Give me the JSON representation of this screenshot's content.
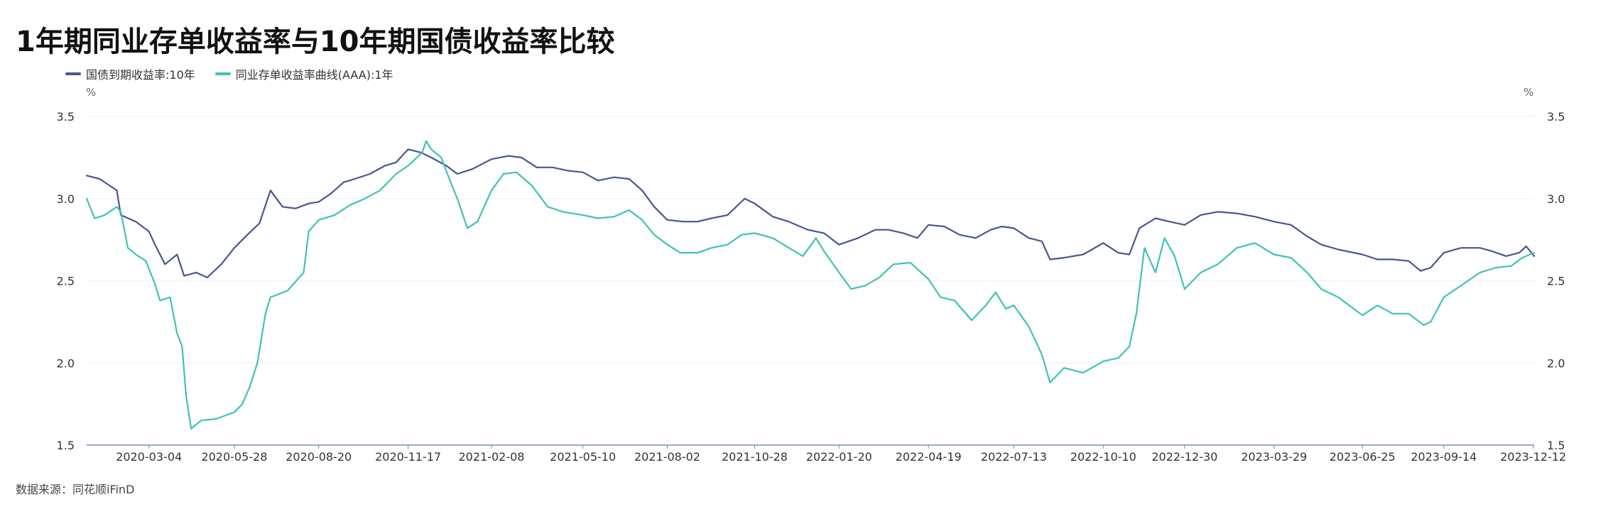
{
  "title": "1年期同业存单收益率与10年期国债收益率比较",
  "source": "数据来源：同花顺iFinD",
  "colors": {
    "navy": "#4a5592",
    "teal": "#3fc2b6",
    "grid": "#eeeeee",
    "axis": "#7a8abf"
  },
  "chart_data": {
    "type": "line",
    "title": "1年期同业存单收益率与10年期国债收益率比较",
    "y_unit_left": "%",
    "y_unit_right": "%",
    "ylim": [
      1.5,
      3.5
    ],
    "y_ticks": [
      "1.5",
      "2.0",
      "2.5",
      "3.0",
      "3.5"
    ],
    "y_tick_values": [
      1.5,
      2.0,
      2.5,
      3.0,
      3.5
    ],
    "grid": true,
    "legend_position": "top-left",
    "x_range": [
      "2020-01-02",
      "2023-12-13"
    ],
    "x_ticks": [
      "2020-03-04",
      "2020-05-28",
      "2020-08-20",
      "2020-11-17",
      "2021-02-08",
      "2021-05-10",
      "2021-08-02",
      "2021-10-28",
      "2022-01-20",
      "2022-04-19",
      "2022-07-13",
      "2022-10-10",
      "2022-12-30",
      "2023-03-29",
      "2023-06-25",
      "2023-09-14",
      "2023-12-12"
    ],
    "series": [
      {
        "name": "国债到期收益率:10年",
        "color": "#4a5592",
        "points": [
          [
            "2020-01-02",
            3.14
          ],
          [
            "2020-01-15",
            3.12
          ],
          [
            "2020-02-01",
            3.05
          ],
          [
            "2020-02-05",
            2.9
          ],
          [
            "2020-02-20",
            2.86
          ],
          [
            "2020-03-04",
            2.8
          ],
          [
            "2020-03-10",
            2.72
          ],
          [
            "2020-03-20",
            2.6
          ],
          [
            "2020-04-01",
            2.66
          ],
          [
            "2020-04-08",
            2.53
          ],
          [
            "2020-04-20",
            2.55
          ],
          [
            "2020-05-01",
            2.52
          ],
          [
            "2020-05-15",
            2.6
          ],
          [
            "2020-05-28",
            2.7
          ],
          [
            "2020-06-10",
            2.78
          ],
          [
            "2020-06-22",
            2.85
          ],
          [
            "2020-07-03",
            3.05
          ],
          [
            "2020-07-15",
            2.95
          ],
          [
            "2020-07-28",
            2.94
          ],
          [
            "2020-08-10",
            2.97
          ],
          [
            "2020-08-20",
            2.98
          ],
          [
            "2020-09-01",
            3.03
          ],
          [
            "2020-09-14",
            3.1
          ],
          [
            "2020-09-25",
            3.12
          ],
          [
            "2020-10-10",
            3.15
          ],
          [
            "2020-10-25",
            3.2
          ],
          [
            "2020-11-05",
            3.22
          ],
          [
            "2020-11-17",
            3.3
          ],
          [
            "2020-11-30",
            3.28
          ],
          [
            "2020-12-10",
            3.25
          ],
          [
            "2020-12-25",
            3.2
          ],
          [
            "2021-01-05",
            3.15
          ],
          [
            "2021-01-20",
            3.18
          ],
          [
            "2021-02-08",
            3.24
          ],
          [
            "2021-02-25",
            3.26
          ],
          [
            "2021-03-10",
            3.25
          ],
          [
            "2021-03-25",
            3.19
          ],
          [
            "2021-04-10",
            3.19
          ],
          [
            "2021-04-25",
            3.17
          ],
          [
            "2021-05-10",
            3.16
          ],
          [
            "2021-05-25",
            3.11
          ],
          [
            "2021-06-10",
            3.13
          ],
          [
            "2021-06-25",
            3.12
          ],
          [
            "2021-07-08",
            3.05
          ],
          [
            "2021-07-20",
            2.95
          ],
          [
            "2021-08-02",
            2.87
          ],
          [
            "2021-08-18",
            2.86
          ],
          [
            "2021-09-01",
            2.86
          ],
          [
            "2021-09-15",
            2.88
          ],
          [
            "2021-10-01",
            2.9
          ],
          [
            "2021-10-18",
            3.0
          ],
          [
            "2021-10-28",
            2.97
          ],
          [
            "2021-11-15",
            2.89
          ],
          [
            "2021-12-01",
            2.86
          ],
          [
            "2021-12-20",
            2.81
          ],
          [
            "2022-01-05",
            2.79
          ],
          [
            "2022-01-20",
            2.72
          ],
          [
            "2022-02-08",
            2.76
          ],
          [
            "2022-02-25",
            2.81
          ],
          [
            "2022-03-10",
            2.81
          ],
          [
            "2022-03-25",
            2.79
          ],
          [
            "2022-04-08",
            2.76
          ],
          [
            "2022-04-19",
            2.84
          ],
          [
            "2022-05-05",
            2.83
          ],
          [
            "2022-05-20",
            2.78
          ],
          [
            "2022-06-05",
            2.76
          ],
          [
            "2022-06-20",
            2.81
          ],
          [
            "2022-07-01",
            2.83
          ],
          [
            "2022-07-13",
            2.82
          ],
          [
            "2022-07-28",
            2.76
          ],
          [
            "2022-08-10",
            2.74
          ],
          [
            "2022-08-18",
            2.63
          ],
          [
            "2022-09-01",
            2.64
          ],
          [
            "2022-09-20",
            2.66
          ],
          [
            "2022-10-10",
            2.73
          ],
          [
            "2022-10-25",
            2.67
          ],
          [
            "2022-11-05",
            2.66
          ],
          [
            "2022-11-15",
            2.82
          ],
          [
            "2022-12-01",
            2.88
          ],
          [
            "2022-12-15",
            2.86
          ],
          [
            "2022-12-30",
            2.84
          ],
          [
            "2023-01-15",
            2.9
          ],
          [
            "2023-02-01",
            2.92
          ],
          [
            "2023-02-20",
            2.91
          ],
          [
            "2023-03-10",
            2.89
          ],
          [
            "2023-03-29",
            2.86
          ],
          [
            "2023-04-15",
            2.84
          ],
          [
            "2023-05-01",
            2.77
          ],
          [
            "2023-05-15",
            2.72
          ],
          [
            "2023-06-01",
            2.69
          ],
          [
            "2023-06-25",
            2.66
          ],
          [
            "2023-07-10",
            2.63
          ],
          [
            "2023-07-25",
            2.63
          ],
          [
            "2023-08-10",
            2.62
          ],
          [
            "2023-08-22",
            2.56
          ],
          [
            "2023-09-01",
            2.58
          ],
          [
            "2023-09-14",
            2.67
          ],
          [
            "2023-10-01",
            2.7
          ],
          [
            "2023-10-20",
            2.7
          ],
          [
            "2023-11-01",
            2.68
          ],
          [
            "2023-11-15",
            2.65
          ],
          [
            "2023-11-28",
            2.67
          ],
          [
            "2023-12-05",
            2.71
          ],
          [
            "2023-12-13",
            2.65
          ]
        ]
      },
      {
        "name": "同业存单收益率曲线(AAA):1年",
        "color": "#3fc2b6",
        "points": [
          [
            "2020-01-02",
            3.0
          ],
          [
            "2020-01-10",
            2.88
          ],
          [
            "2020-01-20",
            2.9
          ],
          [
            "2020-02-01",
            2.95
          ],
          [
            "2020-02-05",
            2.92
          ],
          [
            "2020-02-12",
            2.7
          ],
          [
            "2020-02-20",
            2.66
          ],
          [
            "2020-03-01",
            2.62
          ],
          [
            "2020-03-10",
            2.48
          ],
          [
            "2020-03-15",
            2.38
          ],
          [
            "2020-03-25",
            2.4
          ],
          [
            "2020-04-01",
            2.18
          ],
          [
            "2020-04-06",
            2.1
          ],
          [
            "2020-04-10",
            1.8
          ],
          [
            "2020-04-15",
            1.6
          ],
          [
            "2020-04-25",
            1.65
          ],
          [
            "2020-05-10",
            1.66
          ],
          [
            "2020-05-28",
            1.7
          ],
          [
            "2020-06-05",
            1.75
          ],
          [
            "2020-06-12",
            1.85
          ],
          [
            "2020-06-20",
            2.0
          ],
          [
            "2020-06-28",
            2.3
          ],
          [
            "2020-07-03",
            2.4
          ],
          [
            "2020-07-20",
            2.44
          ],
          [
            "2020-08-05",
            2.55
          ],
          [
            "2020-08-10",
            2.8
          ],
          [
            "2020-08-20",
            2.87
          ],
          [
            "2020-09-05",
            2.9
          ],
          [
            "2020-09-20",
            2.96
          ],
          [
            "2020-10-05",
            3.0
          ],
          [
            "2020-10-20",
            3.05
          ],
          [
            "2020-11-05",
            3.15
          ],
          [
            "2020-11-17",
            3.2
          ],
          [
            "2020-12-01",
            3.28
          ],
          [
            "2020-12-05",
            3.35
          ],
          [
            "2020-12-10",
            3.3
          ],
          [
            "2020-12-20",
            3.25
          ],
          [
            "2020-12-28",
            3.12
          ],
          [
            "2021-01-05",
            3.0
          ],
          [
            "2021-01-15",
            2.82
          ],
          [
            "2021-01-25",
            2.86
          ],
          [
            "2021-02-08",
            3.05
          ],
          [
            "2021-02-20",
            3.15
          ],
          [
            "2021-03-05",
            3.16
          ],
          [
            "2021-03-20",
            3.08
          ],
          [
            "2021-04-05",
            2.95
          ],
          [
            "2021-04-20",
            2.92
          ],
          [
            "2021-05-10",
            2.9
          ],
          [
            "2021-05-25",
            2.88
          ],
          [
            "2021-06-10",
            2.89
          ],
          [
            "2021-06-25",
            2.93
          ],
          [
            "2021-07-08",
            2.87
          ],
          [
            "2021-07-20",
            2.78
          ],
          [
            "2021-08-02",
            2.72
          ],
          [
            "2021-08-15",
            2.67
          ],
          [
            "2021-09-01",
            2.67
          ],
          [
            "2021-09-15",
            2.7
          ],
          [
            "2021-10-01",
            2.72
          ],
          [
            "2021-10-15",
            2.78
          ],
          [
            "2021-10-28",
            2.79
          ],
          [
            "2021-11-15",
            2.76
          ],
          [
            "2021-12-01",
            2.7
          ],
          [
            "2021-12-15",
            2.65
          ],
          [
            "2021-12-28",
            2.76
          ],
          [
            "2022-01-05",
            2.68
          ],
          [
            "2022-01-20",
            2.55
          ],
          [
            "2022-02-01",
            2.45
          ],
          [
            "2022-02-15",
            2.47
          ],
          [
            "2022-03-01",
            2.52
          ],
          [
            "2022-03-15",
            2.6
          ],
          [
            "2022-04-01",
            2.61
          ],
          [
            "2022-04-19",
            2.51
          ],
          [
            "2022-05-01",
            2.4
          ],
          [
            "2022-05-15",
            2.38
          ],
          [
            "2022-06-01",
            2.26
          ],
          [
            "2022-06-15",
            2.35
          ],
          [
            "2022-06-25",
            2.43
          ],
          [
            "2022-07-05",
            2.33
          ],
          [
            "2022-07-13",
            2.35
          ],
          [
            "2022-07-28",
            2.22
          ],
          [
            "2022-08-10",
            2.05
          ],
          [
            "2022-08-18",
            1.88
          ],
          [
            "2022-09-01",
            1.97
          ],
          [
            "2022-09-20",
            1.94
          ],
          [
            "2022-10-10",
            2.01
          ],
          [
            "2022-10-25",
            2.03
          ],
          [
            "2022-11-05",
            2.1
          ],
          [
            "2022-11-12",
            2.3
          ],
          [
            "2022-11-20",
            2.7
          ],
          [
            "2022-12-01",
            2.55
          ],
          [
            "2022-12-10",
            2.76
          ],
          [
            "2022-12-20",
            2.65
          ],
          [
            "2022-12-30",
            2.45
          ],
          [
            "2023-01-15",
            2.55
          ],
          [
            "2023-02-01",
            2.6
          ],
          [
            "2023-02-20",
            2.7
          ],
          [
            "2023-03-10",
            2.73
          ],
          [
            "2023-03-29",
            2.66
          ],
          [
            "2023-04-15",
            2.64
          ],
          [
            "2023-05-01",
            2.55
          ],
          [
            "2023-05-15",
            2.45
          ],
          [
            "2023-06-01",
            2.4
          ],
          [
            "2023-06-25",
            2.29
          ],
          [
            "2023-07-10",
            2.35
          ],
          [
            "2023-07-25",
            2.3
          ],
          [
            "2023-08-10",
            2.3
          ],
          [
            "2023-08-25",
            2.23
          ],
          [
            "2023-09-01",
            2.25
          ],
          [
            "2023-09-14",
            2.4
          ],
          [
            "2023-10-01",
            2.47
          ],
          [
            "2023-10-20",
            2.55
          ],
          [
            "2023-11-05",
            2.58
          ],
          [
            "2023-11-20",
            2.59
          ],
          [
            "2023-12-01",
            2.64
          ],
          [
            "2023-12-13",
            2.67
          ]
        ]
      }
    ]
  }
}
